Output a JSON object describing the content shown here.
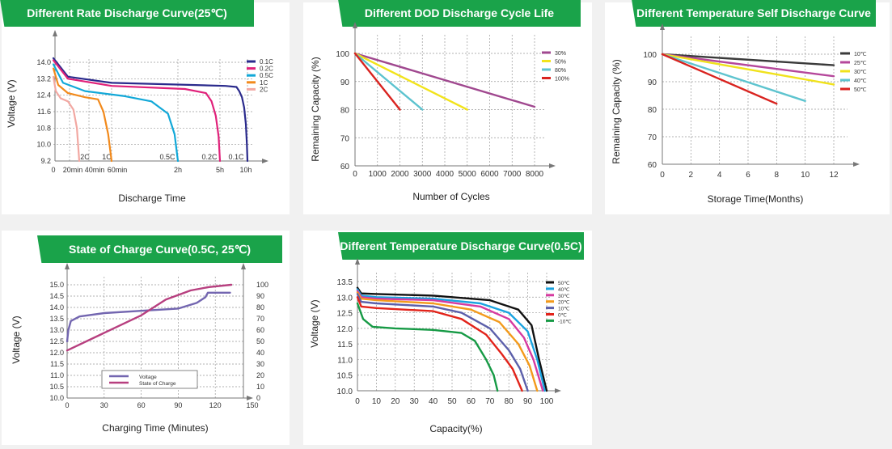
{
  "chart_data": [
    {
      "id": "c1",
      "type": "line",
      "title": "Different Rate Discharge Curve(25℃)",
      "xlabel": "Discharge Time",
      "ylabel": "Voltage (V)",
      "y_ticks": [
        "14.0",
        "13.2",
        "12.4",
        "11.6",
        "10.8",
        "10.0",
        "9.2"
      ],
      "ylim": [
        9.2,
        14.4
      ],
      "x_ticks": [
        "0",
        "20min",
        "40min",
        "60min",
        "2h",
        "5h",
        "10h"
      ],
      "curve_labels": [
        "2C",
        "1C",
        "0.5C",
        "0.2C",
        "0.1C"
      ],
      "series": [
        {
          "name": "0.1C",
          "color": "#2a2a8c",
          "points": [
            [
              0,
              14.2
            ],
            [
              0.3,
              13.3
            ],
            [
              1,
              13.0
            ],
            [
              3,
              12.9
            ],
            [
              6,
              12.85
            ],
            [
              8,
              12.8
            ],
            [
              8.5,
              12.6
            ],
            [
              9,
              12.3
            ],
            [
              9.4,
              11.8
            ],
            [
              9.7,
              11.0
            ],
            [
              9.9,
              10.0
            ],
            [
              10,
              9.2
            ]
          ]
        },
        {
          "name": "0.2C",
          "color": "#e0217a",
          "points": [
            [
              0,
              14.1
            ],
            [
              0.3,
              13.2
            ],
            [
              1,
              12.85
            ],
            [
              2.5,
              12.7
            ],
            [
              4,
              12.5
            ],
            [
              4.4,
              12.1
            ],
            [
              4.7,
              11.4
            ],
            [
              4.9,
              10.4
            ],
            [
              5,
              9.2
            ]
          ]
        },
        {
          "name": "0.5C",
          "color": "#12a8d8",
          "points": [
            [
              0,
              13.9
            ],
            [
              0.2,
              13.0
            ],
            [
              0.6,
              12.6
            ],
            [
              1.2,
              12.35
            ],
            [
              1.6,
              12.1
            ],
            [
              1.85,
              11.5
            ],
            [
              1.95,
              10.5
            ],
            [
              2,
              9.2
            ]
          ]
        },
        {
          "name": "1C",
          "color": "#f28a1c",
          "points": [
            [
              0,
              13.7
            ],
            [
              0.1,
              12.9
            ],
            [
              0.3,
              12.5
            ],
            [
              0.6,
              12.3
            ],
            [
              0.8,
              12.2
            ],
            [
              0.88,
              11.6
            ],
            [
              0.95,
              10.5
            ],
            [
              1,
              9.2
            ]
          ]
        },
        {
          "name": "2C",
          "color": "#f2a8a2",
          "points": [
            [
              0,
              13.3
            ],
            [
              0.05,
              12.6
            ],
            [
              0.15,
              12.25
            ],
            [
              0.3,
              12.1
            ],
            [
              0.4,
              11.7
            ],
            [
              0.46,
              10.8
            ],
            [
              0.5,
              9.2
            ]
          ]
        }
      ]
    },
    {
      "id": "c2",
      "type": "line",
      "title": "Different DOD Discharge Cycle Life Curve(1C)",
      "xlabel": "Number of Cycles",
      "ylabel": "Remaining Capacity (%)",
      "x_ticks": [
        "0",
        "1000",
        "2000",
        "3000",
        "4000",
        "5000",
        "6000",
        "7000",
        "8000"
      ],
      "y_ticks": [
        "100",
        "90",
        "80",
        "70",
        "60"
      ],
      "xlim": [
        0,
        8000
      ],
      "ylim": [
        60,
        100
      ],
      "series": [
        {
          "name": "30%",
          "color": "#a0488f",
          "points": [
            [
              0,
              100
            ],
            [
              8000,
              81
            ]
          ]
        },
        {
          "name": "50%",
          "color": "#f2e31b",
          "points": [
            [
              0,
              100
            ],
            [
              5000,
              80
            ]
          ]
        },
        {
          "name": "80%",
          "color": "#5cc3cf",
          "points": [
            [
              0,
              100
            ],
            [
              3000,
              80
            ]
          ]
        },
        {
          "name": "100%",
          "color": "#d9231f",
          "points": [
            [
              0,
              100
            ],
            [
              2000,
              80
            ]
          ]
        }
      ]
    },
    {
      "id": "c3",
      "type": "line",
      "title": "Different Temperature Self Discharge Curve",
      "xlabel": "Storage Time(Months)",
      "ylabel": "Remaining Capacity (%)",
      "x_ticks": [
        "0",
        "2",
        "4",
        "6",
        "8",
        "10",
        "12"
      ],
      "y_ticks": [
        "100",
        "90",
        "80",
        "70",
        "60"
      ],
      "xlim": [
        0,
        13
      ],
      "ylim": [
        60,
        102
      ],
      "series": [
        {
          "name": "10℃",
          "color": "#3a3a3a",
          "points": [
            [
              0,
              100
            ],
            [
              12,
              96
            ]
          ]
        },
        {
          "name": "25℃",
          "color": "#b5479b",
          "points": [
            [
              0,
              100
            ],
            [
              12,
              92
            ]
          ]
        },
        {
          "name": "30℃",
          "color": "#f0e21c",
          "points": [
            [
              0,
              100
            ],
            [
              12,
              89
            ]
          ]
        },
        {
          "name": "40℃",
          "color": "#5ec4cf",
          "points": [
            [
              0,
              100
            ],
            [
              10,
              83
            ]
          ]
        },
        {
          "name": "50℃",
          "color": "#d9231f",
          "points": [
            [
              0,
              100
            ],
            [
              8,
              82
            ]
          ]
        }
      ]
    },
    {
      "id": "c4",
      "type": "line",
      "title": "State of Charge Curve(0.5C, 25℃)",
      "xlabel": "Charging Time (Minutes)",
      "ylabel": "Voltage (V)",
      "x_ticks": [
        "0",
        "30",
        "60",
        "90",
        "120",
        "150"
      ],
      "y_ticks": [
        "15.0",
        "14.5",
        "14.0",
        "13.5",
        "13.0",
        "12.5",
        "12.0",
        "11.5",
        "11.0",
        "10.5",
        "10.0"
      ],
      "y2_ticks": [
        "100",
        "90",
        "80",
        "70",
        "60",
        "50",
        "40",
        "30",
        "20",
        "10",
        "0"
      ],
      "xlim": [
        0,
        150
      ],
      "ylim": [
        10.0,
        15.3
      ],
      "y2lim": [
        0,
        106
      ],
      "series": [
        {
          "name": "Voltage",
          "axis": "left",
          "color": "#7366b0",
          "points": [
            [
              0,
              12.5
            ],
            [
              1,
              13.0
            ],
            [
              3,
              13.4
            ],
            [
              10,
              13.6
            ],
            [
              30,
              13.75
            ],
            [
              60,
              13.85
            ],
            [
              90,
              13.95
            ],
            [
              105,
              14.2
            ],
            [
              112,
              14.45
            ],
            [
              114,
              14.65
            ],
            [
              132,
              14.65
            ]
          ]
        },
        {
          "name": "State of Charge",
          "axis": "right",
          "color": "#b73f7f",
          "points": [
            [
              0,
              42
            ],
            [
              60,
              73
            ],
            [
              80,
              87
            ],
            [
              100,
              95
            ],
            [
              115,
              98
            ],
            [
              133,
              100
            ]
          ]
        }
      ]
    },
    {
      "id": "c5",
      "type": "line",
      "title": "Different Temperature Discharge Curve(0.5C)",
      "xlabel": "Capacity(%)",
      "ylabel": "Voltage (V)",
      "x_ticks": [
        "0",
        "10",
        "20",
        "30",
        "40",
        "50",
        "60",
        "70",
        "80",
        "90",
        "100"
      ],
      "y_ticks": [
        "13.5",
        "13.0",
        "12.5",
        "12.0",
        "11.5",
        "11.0",
        "10.5",
        "10.0"
      ],
      "xlim": [
        0,
        100
      ],
      "ylim": [
        10.0,
        13.7
      ],
      "series": [
        {
          "name": "50℃",
          "color": "#111111",
          "points": [
            [
              0,
              13.3
            ],
            [
              2,
              13.12
            ],
            [
              10,
              13.1
            ],
            [
              40,
              13.05
            ],
            [
              70,
              12.9
            ],
            [
              85,
              12.6
            ],
            [
              92,
              12.1
            ],
            [
              96,
              11.0
            ],
            [
              98,
              10.5
            ],
            [
              100,
              10.0
            ]
          ]
        },
        {
          "name": "40℃",
          "color": "#1aa3e0",
          "points": [
            [
              0,
              13.25
            ],
            [
              2,
              13.05
            ],
            [
              10,
              13.0
            ],
            [
              40,
              12.95
            ],
            [
              65,
              12.8
            ],
            [
              80,
              12.5
            ],
            [
              90,
              11.9
            ],
            [
              95,
              11.0
            ],
            [
              99,
              10.0
            ]
          ]
        },
        {
          "name": "30℃",
          "color": "#d63aa0",
          "points": [
            [
              0,
              13.2
            ],
            [
              2,
              13.0
            ],
            [
              10,
              12.95
            ],
            [
              40,
              12.9
            ],
            [
              65,
              12.7
            ],
            [
              80,
              12.3
            ],
            [
              88,
              11.7
            ],
            [
              93,
              11.0
            ],
            [
              98,
              10.0
            ]
          ]
        },
        {
          "name": "20℃",
          "color": "#f39a1b",
          "points": [
            [
              0,
              13.15
            ],
            [
              2,
              12.95
            ],
            [
              10,
              12.9
            ],
            [
              40,
              12.8
            ],
            [
              60,
              12.6
            ],
            [
              75,
              12.2
            ],
            [
              85,
              11.5
            ],
            [
              91,
              10.8
            ],
            [
              95,
              10.0
            ]
          ]
        },
        {
          "name": "10℃",
          "color": "#5b5faa",
          "points": [
            [
              0,
              13.1
            ],
            [
              2,
              12.85
            ],
            [
              10,
              12.8
            ],
            [
              40,
              12.7
            ],
            [
              55,
              12.5
            ],
            [
              70,
              12.0
            ],
            [
              80,
              11.3
            ],
            [
              86,
              10.7
            ],
            [
              90,
              10.0
            ]
          ]
        },
        {
          "name": "0℃",
          "color": "#e2231a",
          "points": [
            [
              0,
              13.0
            ],
            [
              2,
              12.7
            ],
            [
              10,
              12.65
            ],
            [
              40,
              12.55
            ],
            [
              55,
              12.3
            ],
            [
              68,
              11.8
            ],
            [
              76,
              11.2
            ],
            [
              82,
              10.7
            ],
            [
              87,
              10.0
            ]
          ]
        },
        {
          "name": "-10℃",
          "color": "#169a45",
          "points": [
            [
              0,
              12.8
            ],
            [
              3,
              12.3
            ],
            [
              8,
              12.05
            ],
            [
              20,
              12.0
            ],
            [
              40,
              11.95
            ],
            [
              55,
              11.85
            ],
            [
              62,
              11.6
            ],
            [
              68,
              11.0
            ],
            [
              72,
              10.5
            ],
            [
              74,
              10.0
            ]
          ]
        }
      ]
    }
  ]
}
